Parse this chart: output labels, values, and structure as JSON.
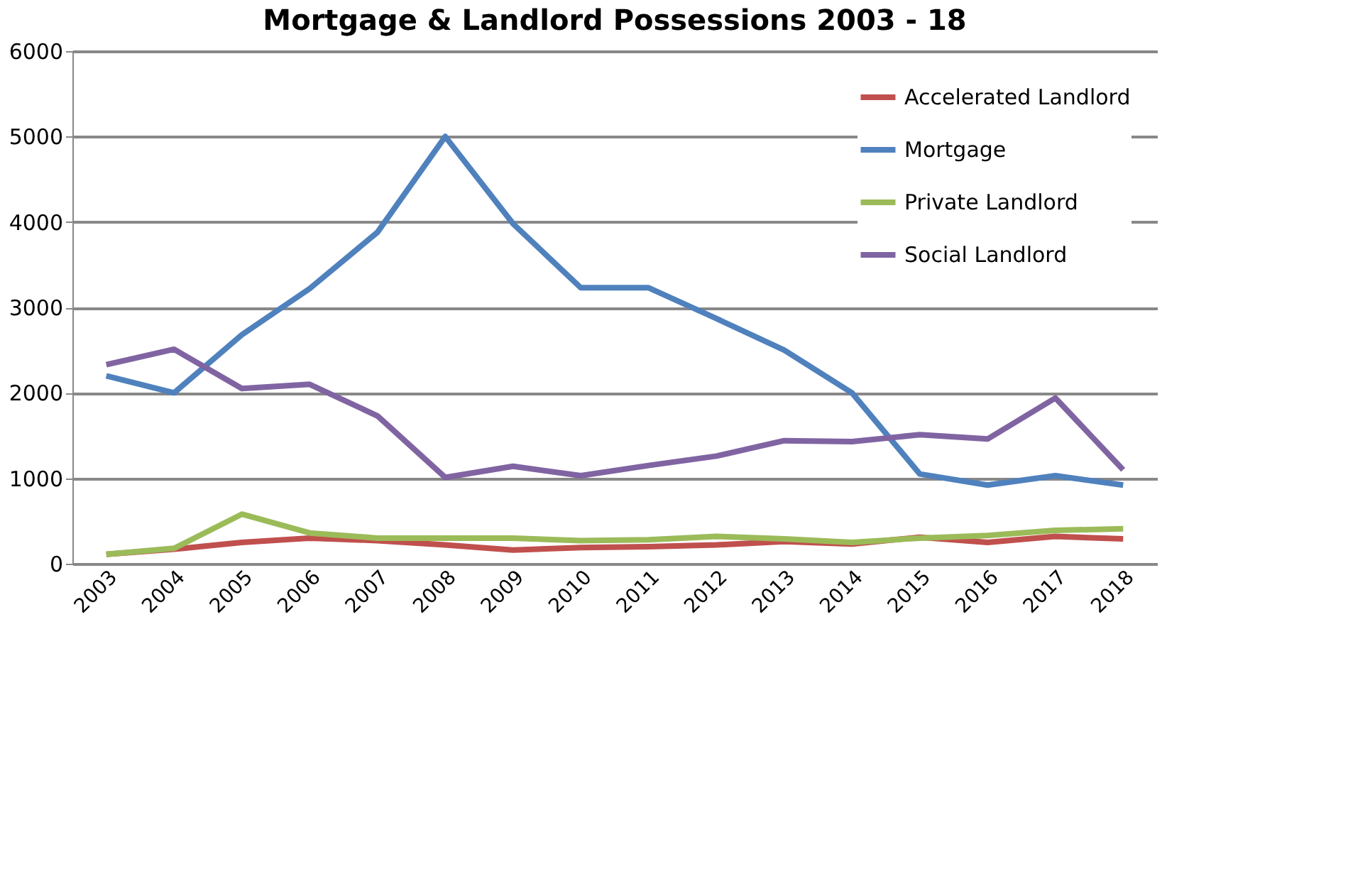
{
  "chart_data": {
    "type": "line",
    "title": "Mortgage & Landlord Possessions 2003 - 18",
    "categories": [
      "2003",
      "2004",
      "2005",
      "2006",
      "2007",
      "2008",
      "2009",
      "2010",
      "2011",
      "2012",
      "2013",
      "2014",
      "2015",
      "2016",
      "2017",
      "2018"
    ],
    "series": [
      {
        "name": "Accelerated Landlord",
        "color": "#c0504d",
        "values": [
          110,
          170,
          250,
          300,
          270,
          220,
          160,
          190,
          200,
          220,
          260,
          230,
          310,
          250,
          320,
          290
        ]
      },
      {
        "name": "Mortgage",
        "color": "#4f81bd",
        "values": [
          2200,
          2000,
          2680,
          3220,
          3880,
          5000,
          3980,
          3230,
          3230,
          2870,
          2500,
          2000,
          1050,
          920,
          1030,
          920
        ]
      },
      {
        "name": "Private Landlord",
        "color": "#9bbb59",
        "values": [
          110,
          180,
          580,
          360,
          300,
          300,
          300,
          270,
          280,
          320,
          290,
          250,
          300,
          330,
          390,
          410
        ]
      },
      {
        "name": "Social Landlord",
        "color": "#8064a2",
        "values": [
          2330,
          2510,
          2050,
          2100,
          1730,
          1010,
          1140,
          1030,
          1150,
          1260,
          1440,
          1430,
          1510,
          1460,
          1940,
          1100
        ]
      }
    ],
    "ylim": [
      0,
      6000
    ],
    "yticks": [
      0,
      1000,
      2000,
      3000,
      4000,
      5000,
      6000
    ],
    "grid": "y",
    "legend": "top right",
    "marker": "none",
    "line_style": "solid"
  }
}
